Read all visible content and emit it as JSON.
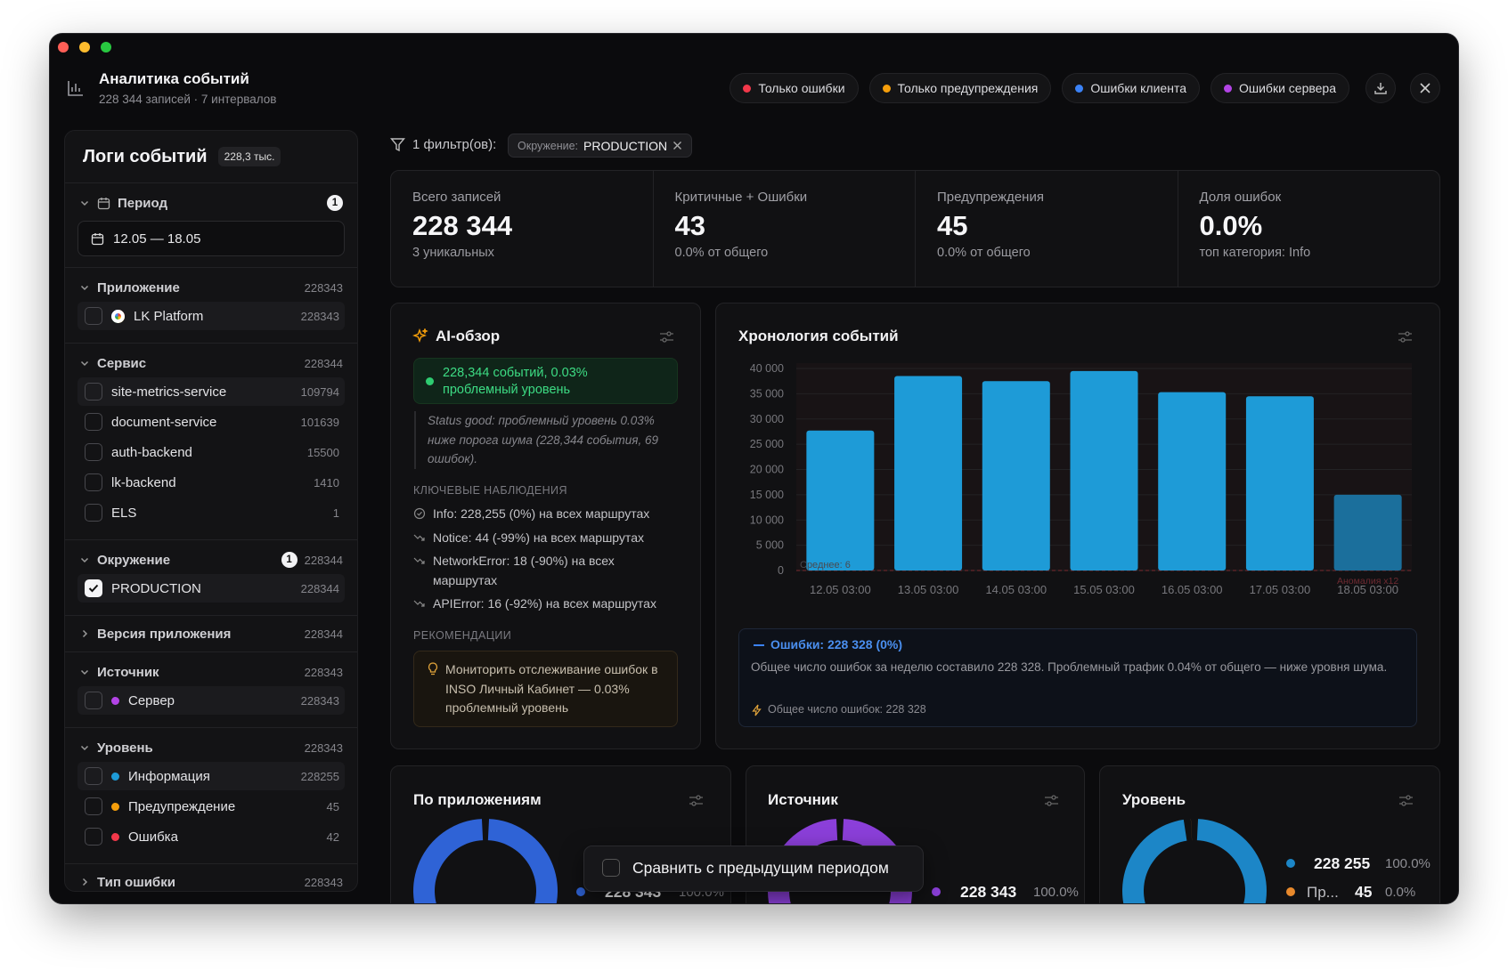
{
  "header": {
    "title": "Аналитика событий",
    "subtitle": "228 344 записей · 7 интервалов",
    "quick_filters": [
      {
        "label": "Только ошибки",
        "color": "#f2384a"
      },
      {
        "label": "Только предупреждения",
        "color": "#f59e0b"
      },
      {
        "label": "Ошибки клиента",
        "color": "#3b82f6"
      },
      {
        "label": "Ошибки сервера",
        "color": "#b344e6"
      }
    ]
  },
  "sidebar": {
    "title": "Логи событий",
    "badge": "228,3 тыс.",
    "sections": [
      {
        "title": "Период",
        "badge": "1",
        "date": "12.05 — 18.05"
      },
      {
        "title": "Приложение",
        "count": 228343,
        "items": [
          {
            "label": "LK Platform",
            "count": 228343
          }
        ]
      },
      {
        "title": "Сервис",
        "count": 228344,
        "items": [
          {
            "label": "site-metrics-service",
            "count": 109794
          },
          {
            "label": "document-service",
            "count": 101639
          },
          {
            "label": "auth-backend",
            "count": 15500
          },
          {
            "label": "lk-backend",
            "count": 1410
          },
          {
            "label": "ELS",
            "count": 1
          }
        ]
      },
      {
        "title": "Окружение",
        "badge": "1",
        "count": 228344,
        "items": [
          {
            "label": "PRODUCTION",
            "count": 228344,
            "checked": true
          }
        ]
      },
      {
        "title": "Версия приложения",
        "count": 228344,
        "collapsed": true
      },
      {
        "title": "Источник",
        "count": 228343,
        "items": [
          {
            "label": "Сервер",
            "count": 228343,
            "color": "#b344e6"
          }
        ]
      },
      {
        "title": "Уровень",
        "count": 228343,
        "items": [
          {
            "label": "Информация",
            "count": 228255,
            "color": "#1e9bd7"
          },
          {
            "label": "Предупреждение",
            "count": 45,
            "color": "#f59e0b"
          },
          {
            "label": "Ошибка",
            "count": 42,
            "color": "#f2384a"
          }
        ]
      },
      {
        "title": "Тип ошибки",
        "count": 228343,
        "collapsed": true
      }
    ]
  },
  "filters": {
    "label": "1 фильтр(ов):",
    "chip_key": "Окружение:",
    "chip_value": "PRODUCTION"
  },
  "stats": [
    {
      "label": "Всего записей",
      "value": "228 344",
      "note": "3 уникальных"
    },
    {
      "label": "Критичные + Ошибки",
      "value": "43",
      "note": "0.0% от общего"
    },
    {
      "label": "Предупреждения",
      "value": "45",
      "note": "0.0% от общего"
    },
    {
      "label": "Доля ошибок",
      "value": "0.0%",
      "note": "топ категория: Info"
    }
  ],
  "ai": {
    "title": "AI-обзор",
    "status": "228,344 событий, 0.03% проблемный уровень",
    "summary": "Status good: проблемный уровень 0.03% ниже порога шума (228,344 события, 69 ошибок).",
    "observations_title": "КЛЮЧЕВЫЕ НАБЛЮДЕНИЯ",
    "observations": [
      "Info: 228,255 (0%) на всех маршрутах",
      "Notice: 44 (-99%) на всех маршрутах",
      "NetworkError: 18 (-90%) на всех маршрутах",
      "APIError: 16 (-92%) на всех маршрутах"
    ],
    "recommendations_title": "РЕКОМЕНДАЦИИ",
    "recommendation": "Мониторить отслеживание ошибок в INSO Личный Кабинет — 0.03% проблемный уровень"
  },
  "timeline": {
    "info_title": "Ошибки: 228 328 (0%)",
    "info_text": "Общее число ошибок за неделю составило 228 328. Проблемный трафик 0.04% от общего — ниже уровня шума.",
    "info_note": "Общее число ошибок: 228 328"
  },
  "compare": "Сравнить с предыдущим периодом",
  "chart_data": [
    {
      "type": "bar",
      "title": "Хронология событий",
      "categories": [
        "12.05 03:00",
        "13.05 03:00",
        "14.05 03:00",
        "15.05 03:00",
        "16.05 03:00",
        "17.05 03:00",
        "18.05 03:00"
      ],
      "values": [
        27700,
        38500,
        37500,
        39500,
        35300,
        34500,
        15000
      ],
      "colors": [
        "#1e9bd7",
        "#1e9bd7",
        "#1e9bd7",
        "#1e9bd7",
        "#1e9bd7",
        "#1e9bd7",
        "#1b6f9c"
      ],
      "ylim": [
        0,
        40000
      ],
      "yticks": [
        0,
        {
          "value": 5000,
          "label": "5 000"
        },
        {
          "value": 10000,
          "label": "10 000"
        },
        {
          "value": 15000,
          "label": "15 000"
        },
        {
          "value": 20000,
          "label": "20 000"
        },
        {
          "value": 25000,
          "label": "25 000"
        },
        {
          "value": 30000,
          "label": "30 000"
        },
        {
          "value": 35000,
          "label": "35 000"
        },
        {
          "value": 40000,
          "label": "40 000"
        }
      ],
      "grid": true,
      "annotations": [
        "Среднее: 6",
        "Аномалия x12"
      ]
    },
    {
      "type": "donut",
      "title": "По приложениям",
      "categories": [
        null
      ],
      "values": [
        228343
      ],
      "value_labels": [
        "228 343"
      ],
      "shares": [
        100.0
      ],
      "share_labels": [
        "100.0%"
      ],
      "colors": [
        "#2f63d6"
      ]
    },
    {
      "type": "donut",
      "title": "Источник",
      "categories": [
        null
      ],
      "values": [
        228343
      ],
      "value_labels": [
        "228 343"
      ],
      "shares": [
        100.0
      ],
      "share_labels": [
        "100.0%"
      ],
      "colors": [
        "#8b3fd9"
      ]
    },
    {
      "type": "donut",
      "title": "Уровень",
      "categories": [
        null,
        "Пр..."
      ],
      "values": [
        228255,
        45
      ],
      "value_labels": [
        "228 255",
        null
      ],
      "shares": [
        100.0,
        0.0
      ],
      "share_labels": [
        "100.0%",
        "0.0%"
      ],
      "colors": [
        "#1c86c7",
        "#e8892c"
      ]
    }
  ]
}
